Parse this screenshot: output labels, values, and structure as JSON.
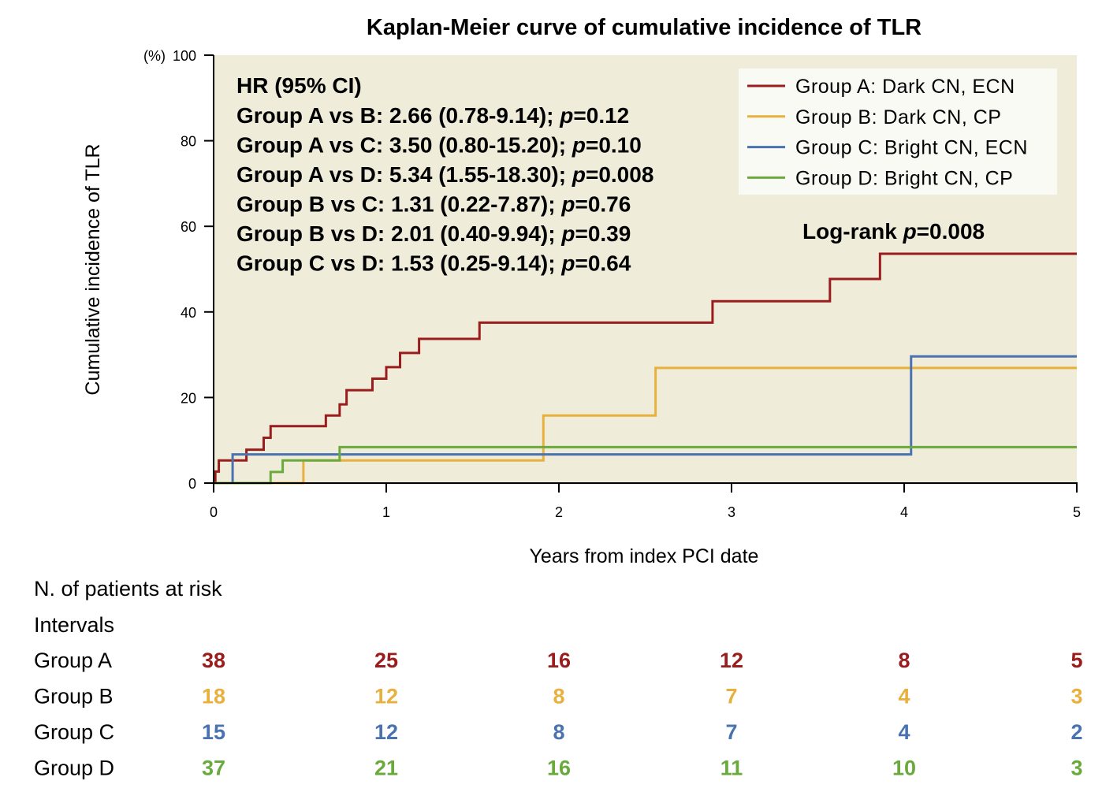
{
  "chart_data": {
    "type": "line",
    "subtype": "step",
    "title": "Kaplan-Meier curve of cumulative incidence of TLR",
    "xlabel": "Years from index PCI date",
    "ylabel": "Cumulative incidence of TLR",
    "yunit": "(%)",
    "xlim": [
      0,
      5
    ],
    "ylim": [
      0,
      100
    ],
    "xticks": [
      "0",
      "1",
      "2",
      "3",
      "4",
      "5"
    ],
    "yticks": [
      "0",
      "20",
      "40",
      "60",
      "80",
      "100"
    ],
    "grid": false,
    "legend_position": "top-right",
    "series": [
      {
        "name": "Group A: Dark CN, ECN",
        "color": "#9b1c1c",
        "x": [
          0,
          0.01,
          0.03,
          0.19,
          0.29,
          0.33,
          0.65,
          0.73,
          0.77,
          0.92,
          1.0,
          1.08,
          1.19,
          1.54,
          2.89,
          3.57,
          3.86,
          5
        ],
        "y": [
          0,
          2.7,
          5.3,
          7.8,
          10.6,
          13.3,
          15.8,
          18.4,
          21.7,
          24.4,
          27.1,
          30.4,
          33.7,
          37.5,
          42.5,
          47.7,
          53.6,
          53.6
        ]
      },
      {
        "name": "Group B: Dark CN, CP",
        "color": "#e8b03c",
        "x": [
          0,
          0.52,
          1.91,
          2.56,
          5
        ],
        "y": [
          0,
          5.3,
          15.8,
          26.9,
          26.9
        ]
      },
      {
        "name": "Group C: Bright CN, ECN",
        "color": "#4a72b0",
        "x": [
          0,
          0.11,
          4.04,
          5
        ],
        "y": [
          0,
          6.7,
          29.6,
          29.6
        ]
      },
      {
        "name": "Group D: Bright CN, CP",
        "color": "#6aaa3c",
        "x": [
          0,
          0.33,
          0.4,
          0.73,
          5
        ],
        "y": [
          0,
          2.6,
          5.3,
          8.4,
          8.4
        ]
      }
    ],
    "annotations": {
      "hr_title": "HR (95% CI)",
      "hr_lines": [
        {
          "text": "Group A vs B: 2.66 (0.78-9.14); ",
          "p": "p",
          "pval": "=0.12"
        },
        {
          "text": "Group A vs C: 3.50 (0.80-15.20); ",
          "p": "p",
          "pval": "=0.10"
        },
        {
          "text": "Group A vs D: 5.34 (1.55-18.30); ",
          "p": "p",
          "pval": "=0.008"
        },
        {
          "text": "Group B vs C: 1.31 (0.22-7.87); ",
          "p": "p",
          "pval": "=0.76"
        },
        {
          "text": "Group B vs D: 2.01 (0.40-9.94); ",
          "p": "p",
          "pval": "=0.39"
        },
        {
          "text": "Group C vs D: 1.53 (0.25-9.14); ",
          "p": "p",
          "pval": "=0.64"
        }
      ],
      "logrank": {
        "text": "Log-rank ",
        "p": "p",
        "pval": "=0.008"
      }
    },
    "risk_table": {
      "title": "N. of patients at risk",
      "intervals_label": "Intervals",
      "rows": [
        {
          "label": "Group A",
          "values": [
            "38",
            "25",
            "16",
            "12",
            "8",
            "5"
          ]
        },
        {
          "label": "Group B",
          "values": [
            "18",
            "12",
            "8",
            "7",
            "4",
            "3"
          ]
        },
        {
          "label": "Group C",
          "values": [
            "15",
            "12",
            "8",
            "7",
            "4",
            "2"
          ]
        },
        {
          "label": "Group D",
          "values": [
            "37",
            "21",
            "16",
            "11",
            "10",
            "3"
          ]
        }
      ]
    }
  }
}
